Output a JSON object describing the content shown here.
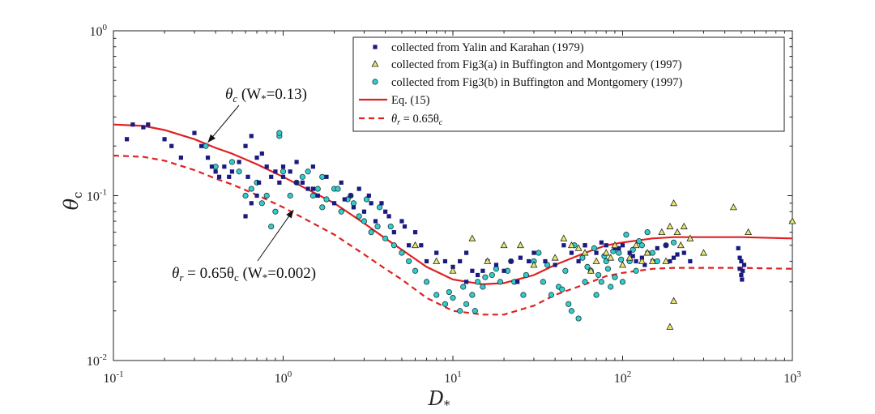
{
  "chart_data": {
    "type": "scatter",
    "title": "",
    "x_scale": "log",
    "y_scale": "log",
    "xlim": [
      0.1,
      1000
    ],
    "ylim": [
      0.01,
      1
    ],
    "xlabel": {
      "main": "D",
      "sub": "*"
    },
    "ylabel": {
      "main": "θ",
      "sub": "c"
    },
    "x_ticks": [
      {
        "value": 0.1,
        "base": "10",
        "exp": "-1"
      },
      {
        "value": 1,
        "base": "10",
        "exp": "0"
      },
      {
        "value": 10,
        "base": "10",
        "exp": "1"
      },
      {
        "value": 100,
        "base": "10",
        "exp": "2"
      },
      {
        "value": 1000,
        "base": "10",
        "exp": "3"
      }
    ],
    "y_ticks": [
      {
        "value": 0.01,
        "base": "10",
        "exp": "-2"
      },
      {
        "value": 0.1,
        "base": "10",
        "exp": "-1"
      },
      {
        "value": 1,
        "base": "10",
        "exp": "0"
      }
    ],
    "colors": {
      "yalin": "#1a1a80",
      "fig3a_fill": "#e8e870",
      "fig3b_fill": "#33cccc",
      "curve": "#e02020",
      "axis": "#222222"
    },
    "legend": {
      "position": "top-right",
      "entries": [
        {
          "text": "collected from Yalin and Karahan (1979)"
        },
        {
          "text": "collected from Fig3(a) in Buffington and Montgomery (1997)"
        },
        {
          "text": "collected from Fig3(b) in Buffington and Montgomery (1997)"
        },
        {
          "text": "Eq. (15)"
        },
        {
          "main": "θ",
          "sub": "r",
          "rest": " = 0.65θ",
          "sub2": "c"
        }
      ]
    },
    "annotations": [
      {
        "name": "theta-c-annotation",
        "main": "θ",
        "sub": "c",
        "mid": " (W",
        "sub2": "*",
        "rest": "=0.13)",
        "arrow_to": {
          "x": 0.36,
          "y": 0.21
        }
      },
      {
        "name": "theta-r-annotation",
        "main": "θ",
        "sub": "r",
        "mid": " = 0.65θ",
        "sub2": "c",
        "mid2": " (W",
        "sub3": "*",
        "rest": "=0.002)",
        "arrow_to": {
          "x": 1.15,
          "y": 0.082
        }
      }
    ],
    "series": [
      {
        "name": "collected from Yalin and Karahan (1979)",
        "marker": "square",
        "x": [
          0.12,
          0.13,
          0.15,
          0.16,
          0.2,
          0.22,
          0.25,
          0.3,
          0.33,
          0.36,
          0.38,
          0.4,
          0.42,
          0.45,
          0.48,
          0.5,
          0.55,
          0.6,
          0.62,
          0.65,
          0.7,
          0.72,
          0.75,
          0.8,
          0.85,
          0.9,
          0.95,
          1.0,
          1.1,
          1.2,
          1.3,
          1.4,
          1.5,
          1.6,
          1.8,
          2.0,
          2.2,
          2.5,
          2.8,
          3.0,
          3.2,
          3.5,
          3.8,
          4.0,
          4.5,
          5.0,
          5.5,
          6.0,
          6.5,
          7.0,
          8.0,
          9.0,
          10,
          11,
          12,
          13,
          14,
          15,
          16,
          18,
          20,
          22,
          25,
          28,
          30,
          35,
          40,
          45,
          50,
          55,
          60,
          70,
          80,
          90,
          100,
          110,
          120,
          130,
          140,
          150,
          160,
          180,
          200,
          230,
          250,
          0.6,
          0.65,
          0.7,
          1.0,
          1.2,
          1.5,
          2.3,
          2.6,
          3.3,
          4.2,
          5.2,
          12,
          24,
          60,
          75,
          95,
          115,
          135,
          190,
          210,
          480,
          490,
          500,
          505,
          510,
          520,
          490,
          500
        ],
        "y": [
          0.22,
          0.27,
          0.26,
          0.27,
          0.22,
          0.2,
          0.17,
          0.24,
          0.2,
          0.17,
          0.15,
          0.14,
          0.13,
          0.15,
          0.13,
          0.14,
          0.16,
          0.2,
          0.13,
          0.23,
          0.17,
          0.12,
          0.18,
          0.15,
          0.13,
          0.14,
          0.12,
          0.13,
          0.14,
          0.16,
          0.12,
          0.11,
          0.15,
          0.1,
          0.13,
          0.09,
          0.12,
          0.1,
          0.11,
          0.08,
          0.1,
          0.07,
          0.09,
          0.08,
          0.06,
          0.07,
          0.05,
          0.06,
          0.05,
          0.04,
          0.045,
          0.04,
          0.037,
          0.04,
          0.045,
          0.035,
          0.033,
          0.035,
          0.04,
          0.038,
          0.035,
          0.04,
          0.042,
          0.04,
          0.045,
          0.04,
          0.038,
          0.05,
          0.045,
          0.04,
          0.05,
          0.045,
          0.05,
          0.048,
          0.05,
          0.045,
          0.04,
          0.042,
          0.045,
          0.04,
          0.048,
          0.05,
          0.042,
          0.045,
          0.04,
          0.075,
          0.09,
          0.1,
          0.15,
          0.12,
          0.11,
          0.095,
          0.085,
          0.09,
          0.075,
          0.065,
          0.03,
          0.03,
          0.05,
          0.052,
          0.048,
          0.043,
          0.038,
          0.04,
          0.044,
          0.048,
          0.036,
          0.033,
          0.031,
          0.035,
          0.038,
          0.042,
          0.04
        ]
      },
      {
        "name": "collected from Fig3(a) in Buffington and Montgomery (1997)",
        "marker": "triangle",
        "x": [
          6,
          8,
          10,
          13,
          16,
          20,
          25,
          30,
          40,
          50,
          55,
          60,
          65,
          70,
          80,
          90,
          100,
          110,
          120,
          130,
          140,
          150,
          170,
          180,
          190,
          200,
          210,
          220,
          230,
          250,
          300,
          450,
          550,
          1000,
          200,
          190,
          85,
          45
        ],
        "y": [
          0.05,
          0.04,
          0.035,
          0.055,
          0.04,
          0.05,
          0.05,
          0.038,
          0.042,
          0.05,
          0.048,
          0.045,
          0.035,
          0.04,
          0.045,
          0.05,
          0.038,
          0.042,
          0.05,
          0.04,
          0.045,
          0.04,
          0.06,
          0.04,
          0.065,
          0.09,
          0.06,
          0.05,
          0.065,
          0.055,
          0.045,
          0.085,
          0.06,
          0.07,
          0.023,
          0.016,
          0.042,
          0.055
        ]
      },
      {
        "name": "collected from Fig3(b) in Buffington and Montgomery (1997)",
        "marker": "circle",
        "x": [
          0.35,
          0.4,
          0.5,
          0.55,
          0.6,
          0.65,
          0.7,
          0.75,
          0.8,
          0.85,
          0.9,
          0.95,
          0.95,
          1.0,
          1.1,
          1.2,
          1.3,
          1.4,
          1.5,
          1.6,
          1.7,
          1.8,
          2.0,
          2.2,
          2.4,
          2.6,
          2.8,
          3.0,
          3.3,
          3.6,
          4.0,
          4.5,
          5.0,
          5.5,
          6.0,
          7.0,
          8.0,
          9.0,
          10,
          11,
          12,
          13,
          14,
          15,
          17,
          19,
          21,
          23,
          26,
          30,
          34,
          38,
          42,
          46,
          50,
          55,
          60,
          65,
          70,
          75,
          80,
          85,
          90,
          95,
          100,
          110,
          120,
          130,
          140,
          150,
          160,
          180,
          200,
          1.7,
          2.1,
          2.5,
          3.1,
          3.7,
          4.3,
          9.5,
          11.5,
          13.5,
          15.5,
          18,
          22,
          27,
          32,
          36,
          44,
          48,
          52,
          58,
          62,
          68,
          72,
          78,
          82,
          88,
          98,
          105,
          115,
          125
        ],
        "y": [
          0.2,
          0.15,
          0.16,
          0.14,
          0.1,
          0.11,
          0.12,
          0.09,
          0.1,
          0.065,
          0.08,
          0.23,
          0.24,
          0.14,
          0.1,
          0.12,
          0.13,
          0.14,
          0.1,
          0.11,
          0.085,
          0.095,
          0.11,
          0.08,
          0.095,
          0.09,
          0.075,
          0.07,
          0.06,
          0.065,
          0.055,
          0.05,
          0.045,
          0.04,
          0.035,
          0.03,
          0.025,
          0.022,
          0.024,
          0.02,
          0.022,
          0.025,
          0.03,
          0.028,
          0.033,
          0.03,
          0.035,
          0.03,
          0.025,
          0.04,
          0.03,
          0.025,
          0.028,
          0.035,
          0.02,
          0.018,
          0.03,
          0.035,
          0.025,
          0.03,
          0.04,
          0.028,
          0.032,
          0.045,
          0.03,
          0.04,
          0.035,
          0.05,
          0.06,
          0.045,
          0.04,
          0.05,
          0.052,
          0.13,
          0.11,
          0.1,
          0.095,
          0.085,
          0.065,
          0.026,
          0.028,
          0.02,
          0.032,
          0.036,
          0.04,
          0.033,
          0.045,
          0.038,
          0.027,
          0.022,
          0.05,
          0.042,
          0.037,
          0.048,
          0.033,
          0.043,
          0.036,
          0.046,
          0.041,
          0.058,
          0.047,
          0.053
        ]
      },
      {
        "name": "Eq. (15)",
        "style": "solid-line",
        "x": [
          0.1,
          0.15,
          0.2,
          0.3,
          0.4,
          0.5,
          0.7,
          1.0,
          1.5,
          2.0,
          3.0,
          4.0,
          5.0,
          7.0,
          10,
          15,
          20,
          30,
          40,
          60,
          80,
          100,
          150,
          200,
          300,
          500,
          1000
        ],
        "y": [
          0.27,
          0.265,
          0.25,
          0.22,
          0.195,
          0.18,
          0.155,
          0.13,
          0.105,
          0.09,
          0.068,
          0.055,
          0.047,
          0.037,
          0.031,
          0.029,
          0.0295,
          0.033,
          0.038,
          0.045,
          0.05,
          0.052,
          0.055,
          0.056,
          0.056,
          0.056,
          0.055
        ]
      },
      {
        "name": "θr = 0.65θc",
        "style": "dashed-line",
        "x": [
          0.1,
          0.15,
          0.2,
          0.3,
          0.4,
          0.5,
          0.7,
          1.0,
          1.5,
          2.0,
          3.0,
          4.0,
          5.0,
          7.0,
          10,
          15,
          20,
          30,
          40,
          60,
          80,
          100,
          150,
          200,
          300,
          500,
          1000
        ],
        "y": [
          0.175,
          0.172,
          0.163,
          0.143,
          0.127,
          0.117,
          0.101,
          0.085,
          0.068,
          0.058,
          0.044,
          0.036,
          0.031,
          0.024,
          0.02,
          0.019,
          0.019,
          0.0215,
          0.025,
          0.029,
          0.0325,
          0.034,
          0.036,
          0.0365,
          0.0365,
          0.0365,
          0.036
        ]
      }
    ]
  }
}
